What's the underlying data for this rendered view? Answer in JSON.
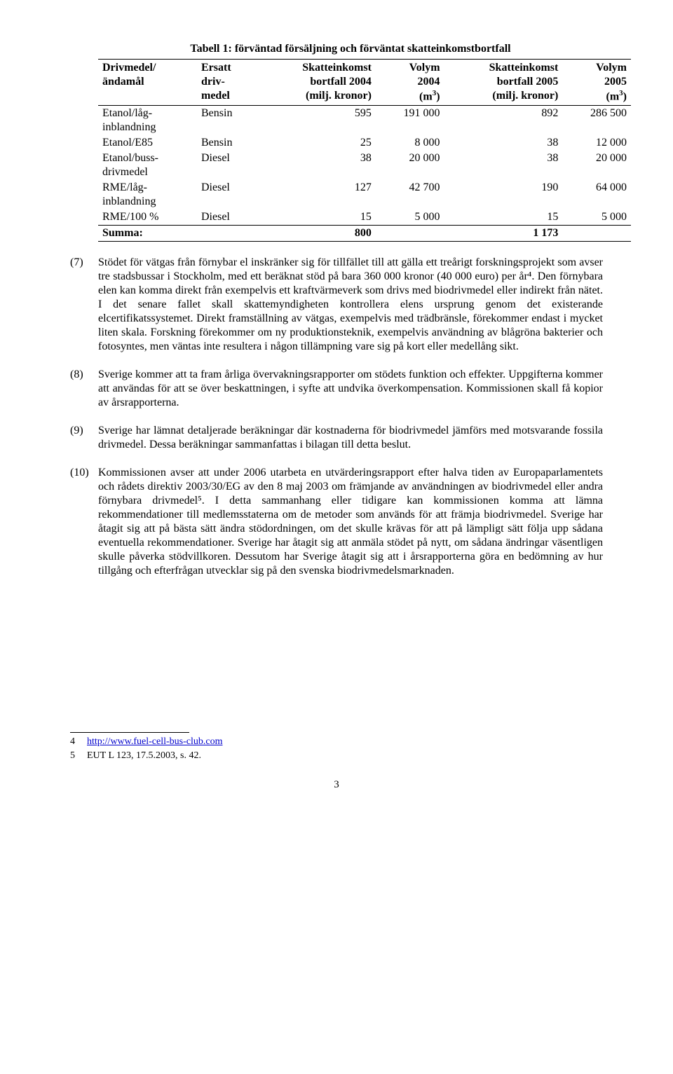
{
  "table": {
    "title": "Tabell 1: förväntad försäljning och förväntat skatteinkomstbortfall",
    "columns": [
      "Drivmedel/ ändamål",
      "Ersatt driv-medel",
      "Skatteinkomst bortfall 2004 (milj. kronor)",
      "Volym 2004 (m³)",
      "Skatteinkomst bortfall 2005 (milj. kronor)",
      "Volym 2005 (m³)"
    ],
    "rows": [
      [
        "Etanol/låg-inblandning",
        "Bensin",
        "595",
        "191 000",
        "892",
        "286 500"
      ],
      [
        "Etanol/E85",
        "Bensin",
        "25",
        "8 000",
        "38",
        "12 000"
      ],
      [
        "Etanol/buss-drivmedel",
        "Diesel",
        "38",
        "20 000",
        "38",
        "20 000"
      ],
      [
        "RME/låg-inblandning",
        "Diesel",
        "127",
        "42 700",
        "190",
        "64 000"
      ],
      [
        "RME/100 %",
        "Diesel",
        "15",
        "5 000",
        "15",
        "5 000"
      ]
    ],
    "summa": [
      "Summa:",
      "",
      "800",
      "",
      "1 173",
      ""
    ]
  },
  "paragraphs": [
    {
      "num": "(7)",
      "text": "Stödet för vätgas från förnybar el inskränker sig för tillfället till att gälla ett treårigt forskningsprojekt som avser tre stadsbussar i Stockholm, med ett beräknat stöd på bara 360 000 kronor (40 000 euro) per år⁴. Den förnybara elen kan komma direkt från exempelvis ett kraftvärmeverk som drivs med biodrivmedel eller indirekt från nätet. I det senare fallet skall skattemyndigheten kontrollera elens ursprung genom det existerande elcertifikatssystemet. Direkt framställning av vätgas, exempelvis med trädbränsle, förekommer endast i mycket liten skala. Forskning förekommer om ny produktionsteknik, exempelvis användning av blågröna bakterier och fotosyntes, men väntas inte resultera i någon tillämpning vare sig på kort eller medellång sikt."
    },
    {
      "num": "(8)",
      "text": "Sverige kommer att ta fram årliga övervakningsrapporter om stödets funktion och effekter. Uppgifterna kommer att användas för att se över beskattningen, i syfte att undvika överkompensation. Kommissionen skall få kopior av årsrapporterna."
    },
    {
      "num": "(9)",
      "text": "Sverige har lämnat detaljerade beräkningar där kostnaderna för biodrivmedel jämförs med motsvarande fossila drivmedel. Dessa beräkningar sammanfattas i bilagan till detta beslut."
    },
    {
      "num": "(10)",
      "text": "Kommissionen avser att under 2006 utarbeta en utvärderingsrapport efter halva tiden av Europaparlamentets och rådets direktiv 2003/30/EG av den 8 maj 2003 om främjande av användningen av biodrivmedel eller andra förnybara drivmedel⁵. I detta sammanhang eller tidigare kan kommissionen komma att lämna rekommendationer till medlemsstaterna om de metoder som används för att främja biodrivmedel. Sverige har åtagit sig att på bästa sätt ändra stödordningen, om det skulle krävas för att på lämpligt sätt följa upp sådana eventuella rekommendationer. Sverige har åtagit sig att anmäla stödet på nytt, om sådana ändringar väsentligen skulle påverka stödvillkoren. Dessutom har Sverige åtagit sig att i årsrapporterna göra en bedömning av hur tillgång och efterfrågan utvecklar sig på den svenska biodrivmedelsmarknaden."
    }
  ],
  "footnotes": [
    {
      "num": "4",
      "html": "<a href=\"#\">http://www.fuel-cell-bus-club.com</a>"
    },
    {
      "num": "5",
      "html": "EUT L 123, 17.5.2003, s. 42."
    }
  ],
  "pageNumber": "3"
}
